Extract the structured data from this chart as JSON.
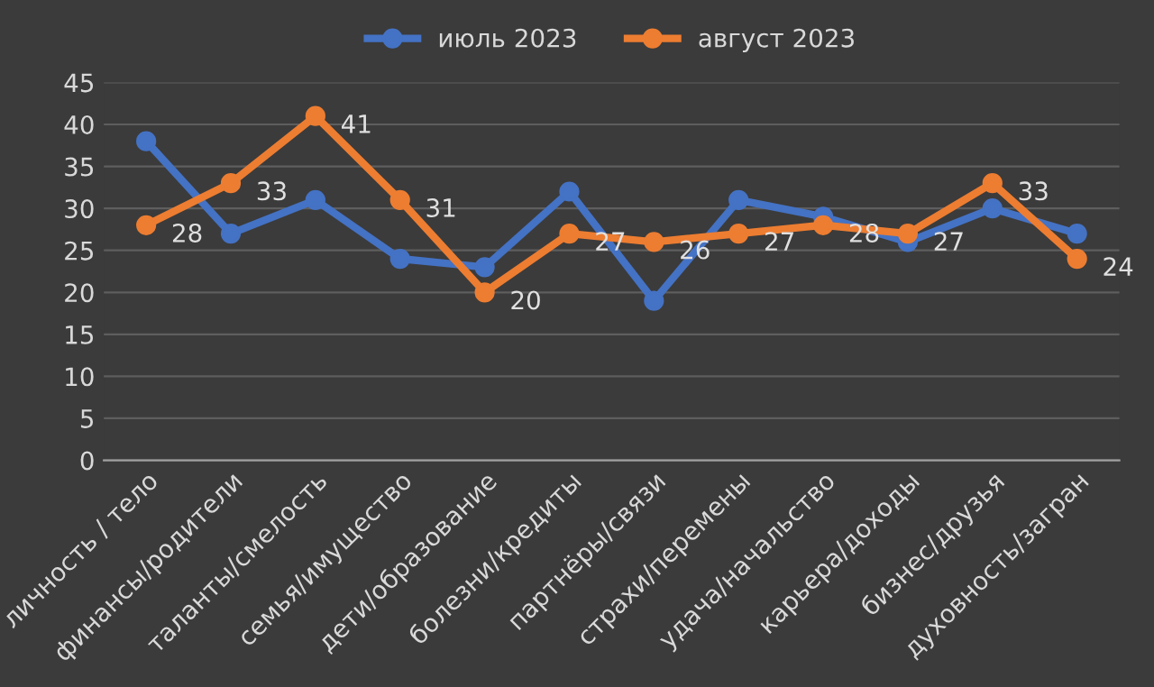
{
  "chart_data": {
    "type": "line",
    "categories": [
      "личность / тело",
      "финансы/родители",
      "таланты/смелость",
      "семья/имущество",
      "дети/образование",
      "болезни/кредиты",
      "партнёры/связи",
      "страхи/перемены",
      "удача/начальство",
      "карьера/доходы",
      "бизнес/друзья",
      "духовность/загран"
    ],
    "series": [
      {
        "name": "июль 2023",
        "color": "#4472c4",
        "values": [
          38,
          27,
          31,
          24,
          23,
          32,
          19,
          31,
          29,
          26,
          30,
          27
        ]
      },
      {
        "name": "август 2023",
        "color": "#ed7d31",
        "values": [
          28,
          33,
          41,
          31,
          20,
          27,
          26,
          27,
          28,
          27,
          33,
          24
        ],
        "value_labels": [
          "28",
          "33",
          "41",
          "31",
          "20",
          "27",
          "26",
          "27",
          "28",
          "27",
          "33",
          "24"
        ]
      }
    ],
    "ylim": [
      0,
      45
    ],
    "yticks": [
      0,
      5,
      10,
      15,
      20,
      25,
      30,
      35,
      40,
      45
    ],
    "grid": "y",
    "legend": "top",
    "marker": "circle",
    "line_style": "solid"
  }
}
